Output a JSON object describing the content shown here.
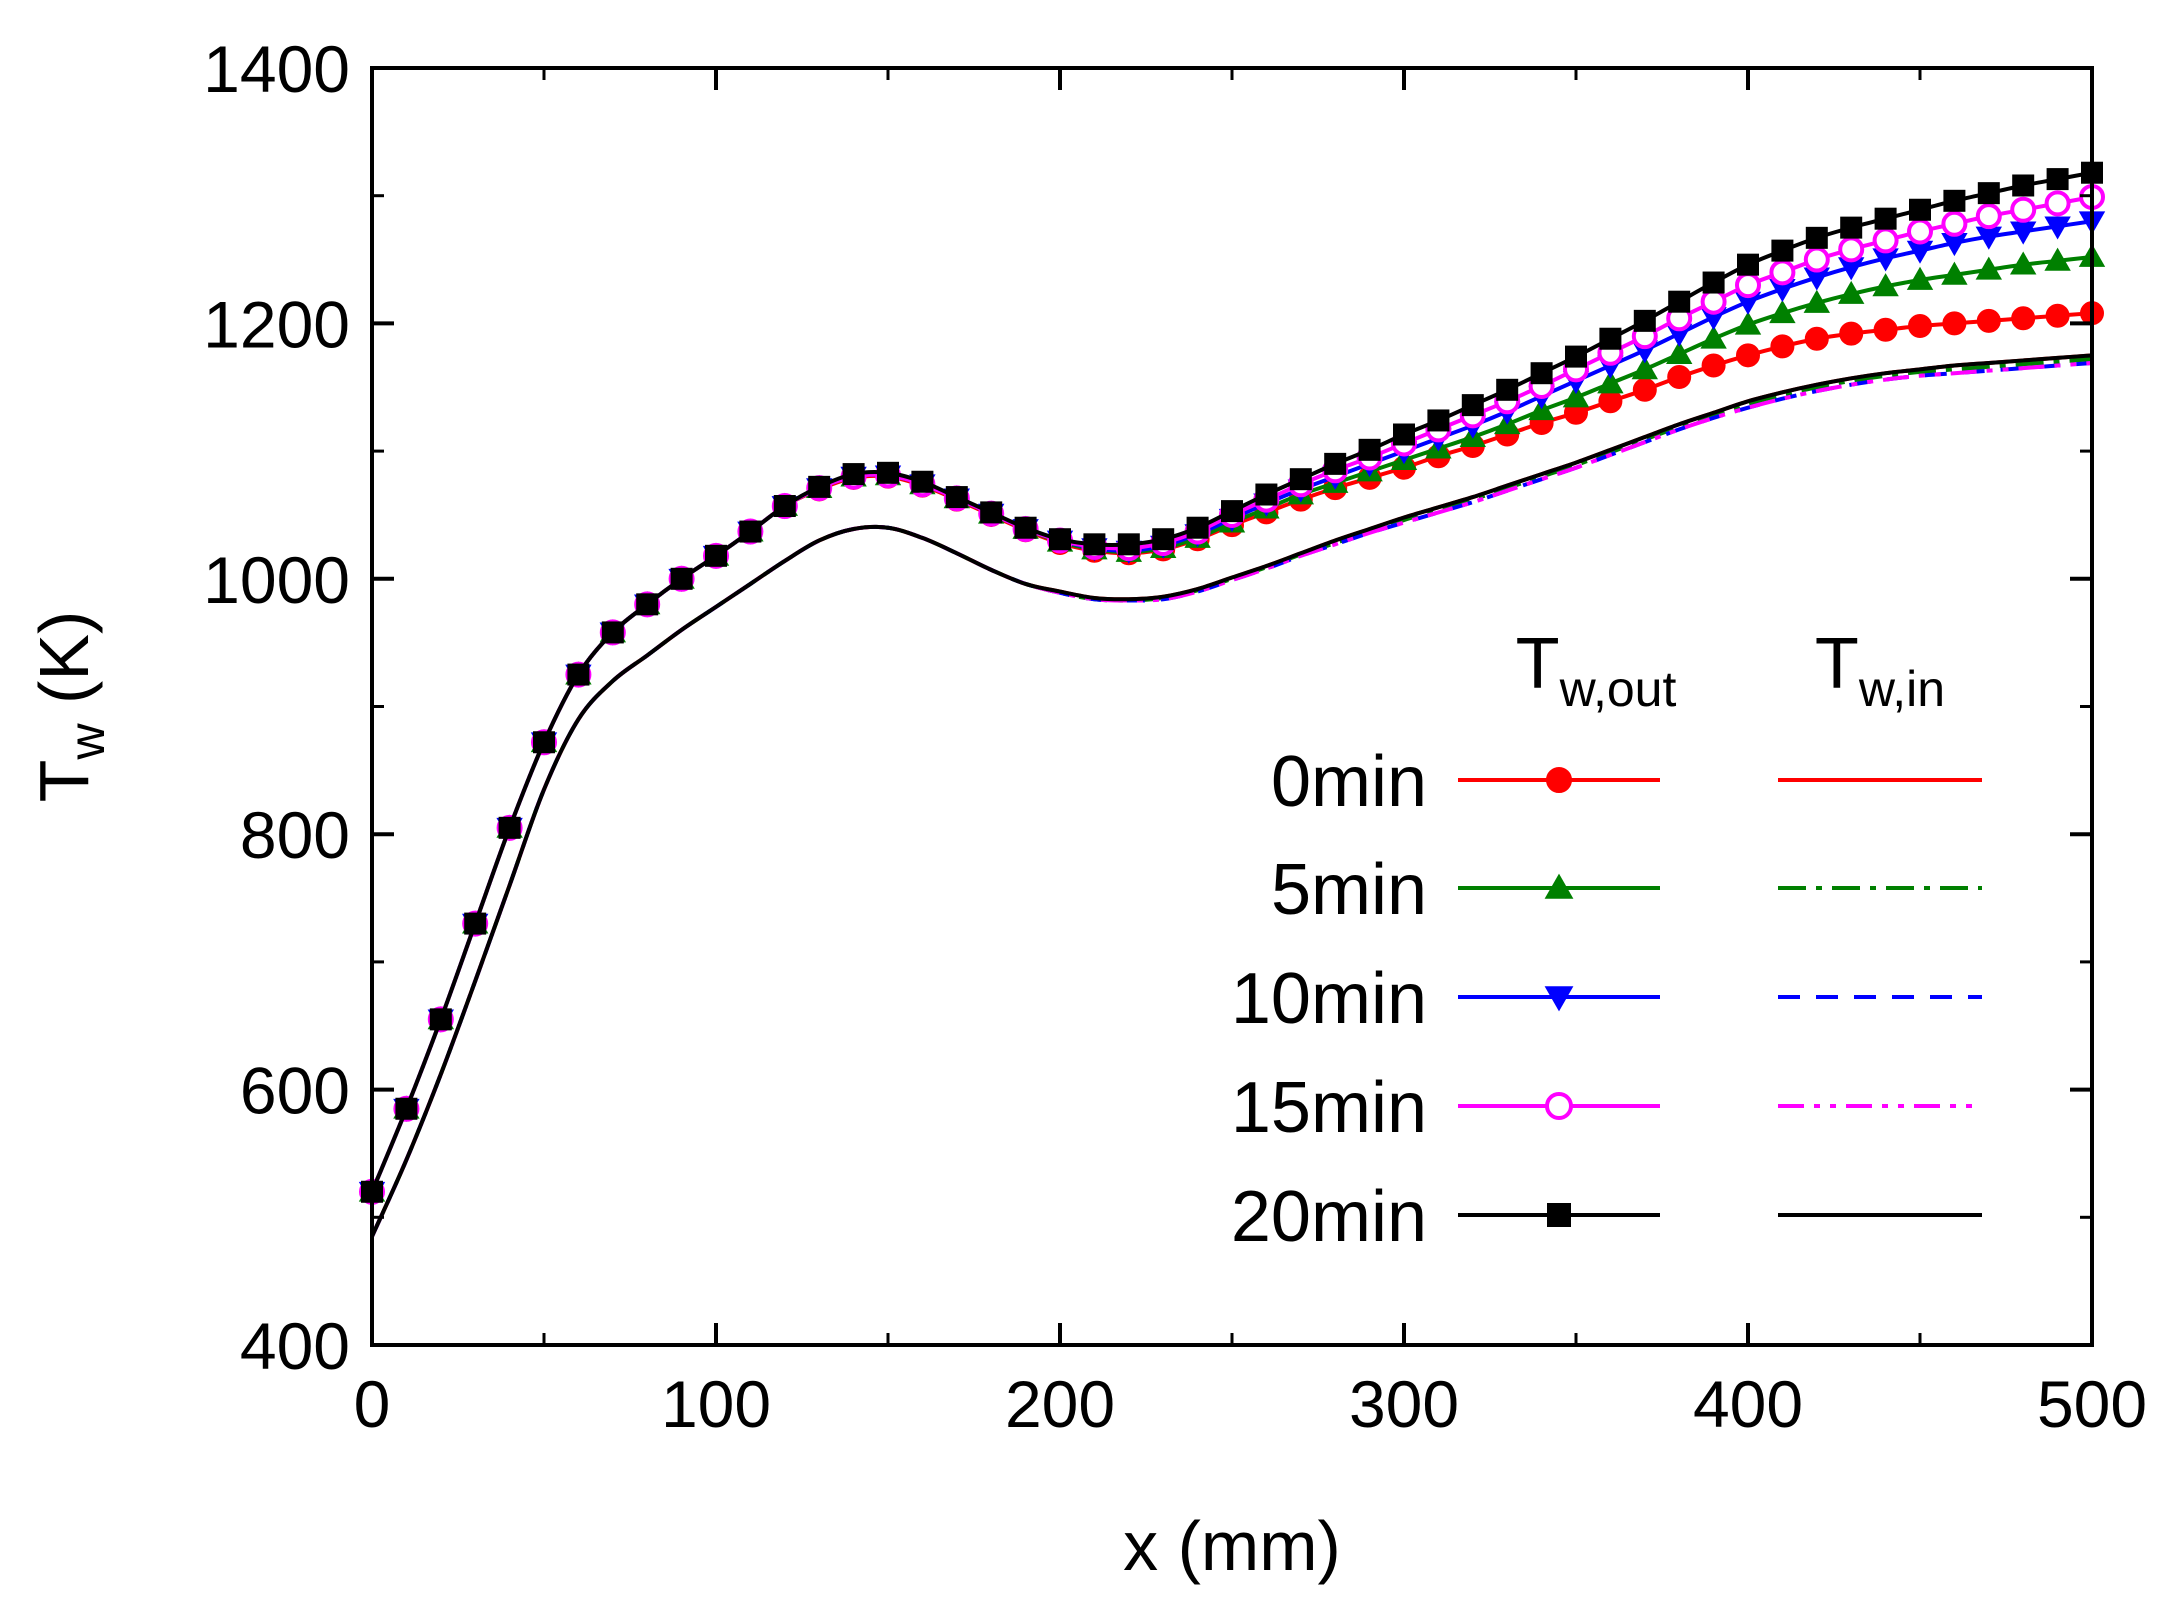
{
  "chart_data": {
    "type": "line",
    "title": "",
    "xlabel": "x (mm)",
    "ylabel": {
      "main": "T",
      "sub": "w",
      "unit": " (K)"
    },
    "xlim": [
      0,
      500
    ],
    "ylim": [
      400,
      1400
    ],
    "xticks": [
      0,
      100,
      200,
      300,
      400,
      500
    ],
    "yticks": [
      400,
      600,
      800,
      1000,
      1200,
      1400
    ],
    "grid": false,
    "legend": {
      "position": "right-center",
      "headers": [
        {
          "main": "T",
          "sub": "w,out"
        },
        {
          "main": "T",
          "sub": "w,in"
        }
      ]
    },
    "series": [
      {
        "name": "0min",
        "color": "#ff0000",
        "marker": "circle",
        "x": [
          0,
          10,
          20,
          30,
          40,
          50,
          60,
          70,
          80,
          90,
          100,
          110,
          120,
          130,
          140,
          150,
          160,
          170,
          180,
          190,
          200,
          210,
          220,
          230,
          240,
          250,
          260,
          270,
          280,
          290,
          300,
          310,
          320,
          330,
          340,
          350,
          360,
          370,
          380,
          390,
          400,
          410,
          420,
          430,
          440,
          450,
          460,
          470,
          480,
          490,
          500
        ],
        "out": [
          520,
          585,
          655,
          730,
          805,
          872,
          925,
          958,
          980,
          1000,
          1018,
          1037,
          1057,
          1070,
          1079,
          1080,
          1073,
          1062,
          1050,
          1038,
          1028,
          1022,
          1020,
          1023,
          1031,
          1042,
          1052,
          1062,
          1071,
          1079,
          1087,
          1096,
          1104,
          1113,
          1122,
          1130,
          1139,
          1148,
          1158,
          1167,
          1175,
          1182,
          1188,
          1192,
          1195,
          1198,
          1200,
          1202,
          1204,
          1206,
          1208
        ],
        "in": [
          485,
          545,
          612,
          685,
          760,
          835,
          890,
          920,
          940,
          960,
          978,
          996,
          1014,
          1030,
          1039,
          1040,
          1032,
          1020,
          1007,
          996,
          990,
          985,
          984,
          986,
          992,
          1001,
          1010,
          1020,
          1030,
          1039,
          1048,
          1056,
          1064,
          1073,
          1082,
          1091,
          1101,
          1111,
          1121,
          1130,
          1139,
          1146,
          1152,
          1157,
          1161,
          1164,
          1167,
          1169,
          1171,
          1173,
          1175
        ]
      },
      {
        "name": "5min",
        "color": "#008000",
        "marker": "triangle-up",
        "x": [
          0,
          10,
          20,
          30,
          40,
          50,
          60,
          70,
          80,
          90,
          100,
          110,
          120,
          130,
          140,
          150,
          160,
          170,
          180,
          190,
          200,
          210,
          220,
          230,
          240,
          250,
          260,
          270,
          280,
          290,
          300,
          310,
          320,
          330,
          340,
          350,
          360,
          370,
          380,
          390,
          400,
          410,
          420,
          430,
          440,
          450,
          460,
          470,
          480,
          490,
          500
        ],
        "out": [
          520,
          585,
          655,
          730,
          805,
          872,
          925,
          958,
          980,
          1000,
          1018,
          1037,
          1057,
          1071,
          1080,
          1081,
          1074,
          1063,
          1051,
          1039,
          1029,
          1023,
          1021,
          1024,
          1032,
          1044,
          1055,
          1066,
          1075,
          1084,
          1093,
          1102,
          1111,
          1121,
          1132,
          1142,
          1153,
          1164,
          1176,
          1188,
          1199,
          1208,
          1216,
          1223,
          1229,
          1234,
          1238,
          1242,
          1246,
          1249,
          1252
        ],
        "in": [
          485,
          545,
          612,
          685,
          760,
          835,
          890,
          920,
          940,
          960,
          978,
          996,
          1014,
          1030,
          1039,
          1040,
          1032,
          1020,
          1007,
          996,
          989,
          984,
          983,
          985,
          991,
          1000,
          1009,
          1019,
          1028,
          1037,
          1046,
          1054,
          1062,
          1071,
          1080,
          1089,
          1099,
          1109,
          1119,
          1128,
          1137,
          1144,
          1150,
          1155,
          1159,
          1162,
          1164,
          1166,
          1168,
          1170,
          1172
        ]
      },
      {
        "name": "10min",
        "color": "#0000ff",
        "marker": "triangle-down",
        "x": [
          0,
          10,
          20,
          30,
          40,
          50,
          60,
          70,
          80,
          90,
          100,
          110,
          120,
          130,
          140,
          150,
          160,
          170,
          180,
          190,
          200,
          210,
          220,
          230,
          240,
          250,
          260,
          270,
          280,
          290,
          300,
          310,
          320,
          330,
          340,
          350,
          360,
          370,
          380,
          390,
          400,
          410,
          420,
          430,
          440,
          450,
          460,
          470,
          480,
          490,
          500
        ],
        "out": [
          520,
          585,
          655,
          730,
          805,
          872,
          925,
          958,
          980,
          1000,
          1018,
          1037,
          1057,
          1071,
          1080,
          1081,
          1074,
          1063,
          1051,
          1039,
          1030,
          1024,
          1022,
          1026,
          1035,
          1047,
          1059,
          1070,
          1080,
          1090,
          1100,
          1110,
          1120,
          1131,
          1143,
          1155,
          1167,
          1179,
          1192,
          1205,
          1217,
          1227,
          1236,
          1244,
          1251,
          1257,
          1263,
          1268,
          1272,
          1276,
          1280
        ],
        "in": [
          485,
          545,
          612,
          685,
          760,
          835,
          890,
          920,
          940,
          960,
          978,
          996,
          1014,
          1030,
          1039,
          1040,
          1032,
          1020,
          1007,
          996,
          989,
          984,
          983,
          984,
          990,
          999,
          1008,
          1018,
          1027,
          1036,
          1044,
          1052,
          1060,
          1069,
          1078,
          1087,
          1097,
          1107,
          1117,
          1126,
          1134,
          1141,
          1147,
          1152,
          1156,
          1159,
          1161,
          1163,
          1165,
          1167,
          1169
        ]
      },
      {
        "name": "15min",
        "color": "#ff00ff",
        "marker": "circle-open",
        "x": [
          0,
          10,
          20,
          30,
          40,
          50,
          60,
          70,
          80,
          90,
          100,
          110,
          120,
          130,
          140,
          150,
          160,
          170,
          180,
          190,
          200,
          210,
          220,
          230,
          240,
          250,
          260,
          270,
          280,
          290,
          300,
          310,
          320,
          330,
          340,
          350,
          360,
          370,
          380,
          390,
          400,
          410,
          420,
          430,
          440,
          450,
          460,
          470,
          480,
          490,
          500
        ],
        "out": [
          520,
          585,
          655,
          730,
          805,
          872,
          925,
          958,
          980,
          1000,
          1018,
          1037,
          1057,
          1071,
          1080,
          1081,
          1074,
          1063,
          1051,
          1039,
          1030,
          1025,
          1024,
          1028,
          1037,
          1050,
          1062,
          1074,
          1085,
          1095,
          1106,
          1117,
          1128,
          1139,
          1151,
          1164,
          1177,
          1190,
          1204,
          1217,
          1230,
          1240,
          1250,
          1258,
          1265,
          1272,
          1278,
          1284,
          1289,
          1294,
          1299
        ],
        "in": [
          485,
          545,
          612,
          685,
          760,
          835,
          890,
          920,
          940,
          960,
          978,
          996,
          1014,
          1030,
          1039,
          1040,
          1032,
          1020,
          1007,
          996,
          989,
          984,
          983,
          984,
          990,
          999,
          1008,
          1018,
          1027,
          1036,
          1044,
          1052,
          1060,
          1069,
          1078,
          1087,
          1097,
          1107,
          1117,
          1126,
          1134,
          1141,
          1147,
          1152,
          1156,
          1159,
          1161,
          1163,
          1165,
          1167,
          1169
        ]
      },
      {
        "name": "20min",
        "color": "#000000",
        "marker": "square",
        "x": [
          0,
          10,
          20,
          30,
          40,
          50,
          60,
          70,
          80,
          90,
          100,
          110,
          120,
          130,
          140,
          150,
          160,
          170,
          180,
          190,
          200,
          210,
          220,
          230,
          240,
          250,
          260,
          270,
          280,
          290,
          300,
          310,
          320,
          330,
          340,
          350,
          360,
          370,
          380,
          390,
          400,
          410,
          420,
          430,
          440,
          450,
          460,
          470,
          480,
          490,
          500
        ],
        "out": [
          520,
          585,
          655,
          730,
          805,
          872,
          925,
          958,
          980,
          1000,
          1018,
          1037,
          1057,
          1072,
          1082,
          1083,
          1076,
          1064,
          1052,
          1040,
          1031,
          1027,
          1027,
          1031,
          1040,
          1053,
          1066,
          1078,
          1090,
          1101,
          1113,
          1124,
          1136,
          1148,
          1161,
          1174,
          1188,
          1202,
          1217,
          1232,
          1246,
          1257,
          1267,
          1275,
          1282,
          1289,
          1296,
          1302,
          1308,
          1313,
          1318
        ],
        "in": [
          485,
          545,
          612,
          685,
          760,
          835,
          890,
          920,
          940,
          960,
          978,
          996,
          1014,
          1030,
          1039,
          1040,
          1032,
          1020,
          1007,
          996,
          990,
          985,
          984,
          986,
          992,
          1001,
          1010,
          1020,
          1030,
          1039,
          1048,
          1056,
          1064,
          1073,
          1082,
          1091,
          1101,
          1111,
          1121,
          1130,
          1139,
          1146,
          1152,
          1157,
          1161,
          1164,
          1167,
          1169,
          1171,
          1173,
          1175
        ]
      }
    ]
  }
}
